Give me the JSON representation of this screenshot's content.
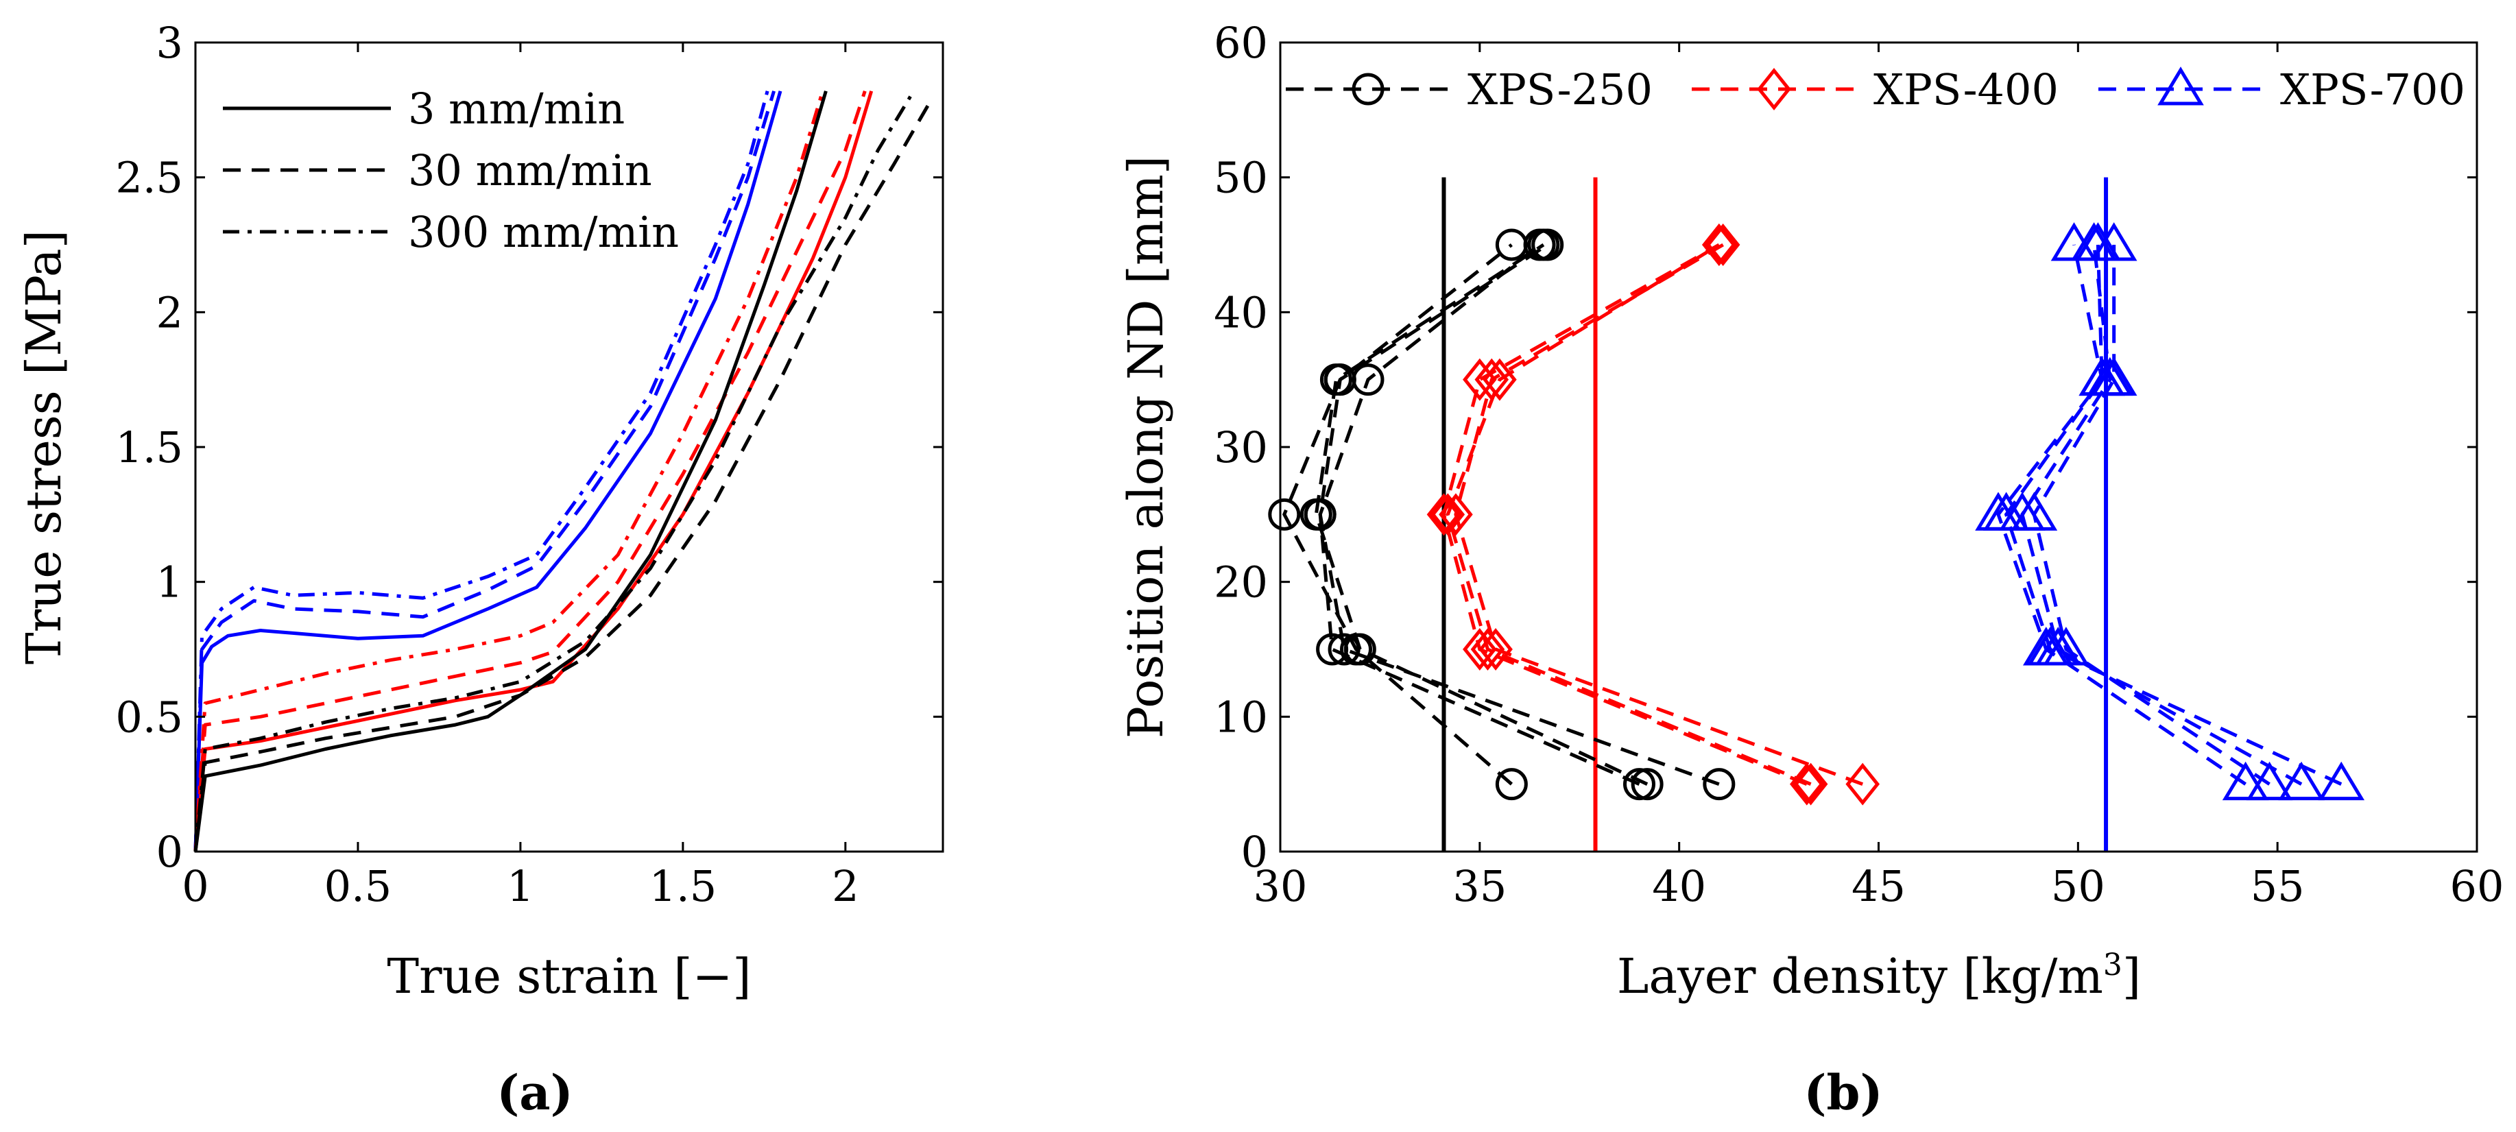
{
  "chart_data": [
    {
      "type": "line",
      "panel_label": "(a)",
      "xlabel": "True strain [−]",
      "ylabel": "True stress [MPa]",
      "xlim": [
        0,
        2.3
      ],
      "ylim": [
        0,
        3
      ],
      "xticks": [
        0,
        0.5,
        1,
        1.5,
        2
      ],
      "xtick_labels": [
        "0",
        "0.5",
        "1",
        "1.5",
        "2"
      ],
      "yticks": [
        0,
        0.5,
        1,
        1.5,
        2,
        2.5,
        3
      ],
      "ytick_labels": [
        "0",
        "0.5",
        "1",
        "1.5",
        "2",
        "2.5",
        "3"
      ],
      "legend": {
        "position": "top-left",
        "entries": [
          {
            "label": "3 mm/min",
            "dash": "solid"
          },
          {
            "label": "30 mm/min",
            "dash": "dashed"
          },
          {
            "label": "300 mm/min",
            "dash": "dashdot"
          }
        ]
      },
      "series": [
        {
          "name": "XPS-700 3 mm/min",
          "color": "#0000ff",
          "dash": "solid",
          "points": [
            [
              0,
              0
            ],
            [
              0.02,
              0.7
            ],
            [
              0.05,
              0.76
            ],
            [
              0.1,
              0.8
            ],
            [
              0.2,
              0.82
            ],
            [
              0.3,
              0.81
            ],
            [
              0.5,
              0.79
            ],
            [
              0.7,
              0.8
            ],
            [
              0.9,
              0.9
            ],
            [
              1.05,
              0.98
            ],
            [
              1.2,
              1.2
            ],
            [
              1.4,
              1.55
            ],
            [
              1.6,
              2.05
            ],
            [
              1.7,
              2.4
            ],
            [
              1.8,
              2.82
            ]
          ]
        },
        {
          "name": "XPS-700 30 mm/min",
          "color": "#0000ff",
          "dash": "dashed",
          "points": [
            [
              0,
              0
            ],
            [
              0.02,
              0.75
            ],
            [
              0.08,
              0.85
            ],
            [
              0.18,
              0.93
            ],
            [
              0.3,
              0.9
            ],
            [
              0.5,
              0.89
            ],
            [
              0.7,
              0.87
            ],
            [
              0.9,
              0.97
            ],
            [
              1.05,
              1.06
            ],
            [
              1.2,
              1.3
            ],
            [
              1.4,
              1.65
            ],
            [
              1.6,
              2.2
            ],
            [
              1.7,
              2.5
            ],
            [
              1.78,
              2.82
            ]
          ]
        },
        {
          "name": "XPS-700 300 mm/min",
          "color": "#0000ff",
          "dash": "dashdot",
          "points": [
            [
              0,
              0
            ],
            [
              0.02,
              0.8
            ],
            [
              0.08,
              0.9
            ],
            [
              0.18,
              0.98
            ],
            [
              0.3,
              0.95
            ],
            [
              0.5,
              0.96
            ],
            [
              0.7,
              0.94
            ],
            [
              0.9,
              1.02
            ],
            [
              1.05,
              1.1
            ],
            [
              1.2,
              1.35
            ],
            [
              1.4,
              1.7
            ],
            [
              1.6,
              2.25
            ],
            [
              1.7,
              2.55
            ],
            [
              1.76,
              2.82
            ]
          ]
        },
        {
          "name": "XPS-400 3 mm/min",
          "color": "#ff0000",
          "dash": "solid",
          "points": [
            [
              0,
              0
            ],
            [
              0.03,
              0.38
            ],
            [
              0.2,
              0.41
            ],
            [
              0.4,
              0.46
            ],
            [
              0.6,
              0.51
            ],
            [
              0.8,
              0.56
            ],
            [
              1.0,
              0.6
            ],
            [
              1.1,
              0.63
            ],
            [
              1.3,
              0.9
            ],
            [
              1.5,
              1.25
            ],
            [
              1.7,
              1.7
            ],
            [
              1.9,
              2.2
            ],
            [
              2.0,
              2.5
            ],
            [
              2.08,
              2.82
            ]
          ]
        },
        {
          "name": "XPS-400 30 mm/min",
          "color": "#ff0000",
          "dash": "dashed",
          "points": [
            [
              0,
              0
            ],
            [
              0.03,
              0.47
            ],
            [
              0.2,
              0.5
            ],
            [
              0.4,
              0.55
            ],
            [
              0.6,
              0.6
            ],
            [
              0.8,
              0.65
            ],
            [
              1.0,
              0.7
            ],
            [
              1.1,
              0.74
            ],
            [
              1.3,
              1.0
            ],
            [
              1.5,
              1.4
            ],
            [
              1.7,
              1.85
            ],
            [
              1.9,
              2.35
            ],
            [
              2.0,
              2.6
            ],
            [
              2.06,
              2.82
            ]
          ]
        },
        {
          "name": "XPS-400 300 mm/min",
          "color": "#ff0000",
          "dash": "dashdot",
          "points": [
            [
              0,
              0
            ],
            [
              0.03,
              0.55
            ],
            [
              0.2,
              0.6
            ],
            [
              0.4,
              0.66
            ],
            [
              0.6,
              0.71
            ],
            [
              0.8,
              0.75
            ],
            [
              1.0,
              0.8
            ],
            [
              1.1,
              0.85
            ],
            [
              1.3,
              1.1
            ],
            [
              1.5,
              1.55
            ],
            [
              1.7,
              2.05
            ],
            [
              1.85,
              2.5
            ],
            [
              1.93,
              2.82
            ]
          ]
        },
        {
          "name": "XPS-250 3 mm/min",
          "color": "#000000",
          "dash": "solid",
          "points": [
            [
              0,
              0
            ],
            [
              0.03,
              0.28
            ],
            [
              0.2,
              0.32
            ],
            [
              0.4,
              0.38
            ],
            [
              0.6,
              0.43
            ],
            [
              0.8,
              0.47
            ],
            [
              0.9,
              0.5
            ],
            [
              1.0,
              0.58
            ],
            [
              1.2,
              0.75
            ],
            [
              1.4,
              1.1
            ],
            [
              1.6,
              1.6
            ],
            [
              1.75,
              2.1
            ],
            [
              1.85,
              2.45
            ],
            [
              1.94,
              2.82
            ]
          ]
        },
        {
          "name": "XPS-250 30 mm/min",
          "color": "#000000",
          "dash": "dashed",
          "points": [
            [
              0,
              0
            ],
            [
              0.03,
              0.33
            ],
            [
              0.2,
              0.37
            ],
            [
              0.4,
              0.42
            ],
            [
              0.6,
              0.46
            ],
            [
              0.8,
              0.5
            ],
            [
              1.0,
              0.58
            ],
            [
              1.2,
              0.72
            ],
            [
              1.4,
              0.95
            ],
            [
              1.6,
              1.3
            ],
            [
              1.8,
              1.75
            ],
            [
              2.0,
              2.25
            ],
            [
              2.15,
              2.55
            ],
            [
              2.27,
              2.8
            ]
          ]
        },
        {
          "name": "XPS-250 300 mm/min",
          "color": "#000000",
          "dash": "dashdot",
          "points": [
            [
              0,
              0
            ],
            [
              0.03,
              0.38
            ],
            [
              0.2,
              0.42
            ],
            [
              0.4,
              0.48
            ],
            [
              0.6,
              0.53
            ],
            [
              0.8,
              0.57
            ],
            [
              1.0,
              0.63
            ],
            [
              1.2,
              0.78
            ],
            [
              1.4,
              1.05
            ],
            [
              1.6,
              1.45
            ],
            [
              1.8,
              1.95
            ],
            [
              2.0,
              2.35
            ],
            [
              2.1,
              2.6
            ],
            [
              2.2,
              2.8
            ]
          ]
        }
      ]
    },
    {
      "type": "line",
      "panel_label": "(b)",
      "xlabel": "Layer density [kg/m",
      "xlabel_sup": "3",
      "xlabel_tail": "]",
      "ylabel": "Position along ND [mm]",
      "xlim": [
        30,
        60
      ],
      "ylim": [
        0,
        60
      ],
      "xticks": [
        30,
        35,
        40,
        45,
        50,
        55,
        60
      ],
      "xtick_labels": [
        "30",
        "35",
        "40",
        "45",
        "50",
        "55",
        "60"
      ],
      "yticks": [
        0,
        10,
        20,
        30,
        40,
        50,
        60
      ],
      "ytick_labels": [
        "0",
        "10",
        "20",
        "30",
        "40",
        "50",
        "60"
      ],
      "legend": {
        "position": "top",
        "entries": [
          {
            "label": "XPS-250",
            "color": "#000000",
            "marker": "circle"
          },
          {
            "label": "XPS-400",
            "color": "#ff0000",
            "marker": "diamond"
          },
          {
            "label": "XPS-700",
            "color": "#0000ff",
            "marker": "triangle"
          }
        ]
      },
      "mean_lines": [
        {
          "name": "XPS-250 mean density",
          "x": 34.1,
          "color": "#000000"
        },
        {
          "name": "XPS-400 mean density",
          "x": 37.9,
          "color": "#ff0000"
        },
        {
          "name": "XPS-700 mean density",
          "x": 50.7,
          "color": "#0000ff"
        }
      ],
      "y_positions": [
        5,
        15,
        25,
        35,
        45
      ],
      "series": [
        {
          "name": "XPS-250 specimen 1",
          "color": "#000000",
          "marker": "circle",
          "x": [
            35.8,
            31.9,
            30.1,
            31.5,
            35.8
          ]
        },
        {
          "name": "XPS-250 specimen 2",
          "color": "#000000",
          "marker": "circle",
          "x": [
            39.0,
            31.3,
            31.0,
            32.2,
            36.5
          ]
        },
        {
          "name": "XPS-250 specimen 3",
          "color": "#000000",
          "marker": "circle",
          "x": [
            41.0,
            31.6,
            31.0,
            31.5,
            36.7
          ]
        },
        {
          "name": "XPS-250 specimen 4",
          "color": "#000000",
          "marker": "circle",
          "x": [
            39.2,
            32.0,
            30.9,
            31.4,
            36.6
          ]
        },
        {
          "name": "XPS-400 specimen 1",
          "color": "#ff0000",
          "marker": "diamond",
          "x": [
            43.2,
            35.0,
            34.1,
            35.0,
            41.0
          ]
        },
        {
          "name": "XPS-400 specimen 2",
          "color": "#ff0000",
          "marker": "diamond",
          "x": [
            44.6,
            35.4,
            34.4,
            35.3,
            41.1
          ]
        },
        {
          "name": "XPS-400 specimen 3",
          "color": "#ff0000",
          "marker": "diamond",
          "x": [
            43.3,
            35.2,
            34.2,
            35.5,
            41.0
          ]
        },
        {
          "name": "XPS-700 specimen 1",
          "color": "#0000ff",
          "marker": "triangle",
          "x": [
            54.2,
            49.2,
            48.0,
            50.6,
            49.9
          ]
        },
        {
          "name": "XPS-700 specimen 2",
          "color": "#0000ff",
          "marker": "triangle",
          "x": [
            55.6,
            49.5,
            48.6,
            50.8,
            50.4
          ]
        },
        {
          "name": "XPS-700 specimen 3",
          "color": "#0000ff",
          "marker": "triangle",
          "x": [
            56.6,
            49.3,
            48.2,
            50.6,
            50.5
          ]
        },
        {
          "name": "XPS-700 specimen 4",
          "color": "#0000ff",
          "marker": "triangle",
          "x": [
            54.8,
            49.7,
            48.9,
            50.9,
            50.9
          ]
        }
      ]
    }
  ]
}
